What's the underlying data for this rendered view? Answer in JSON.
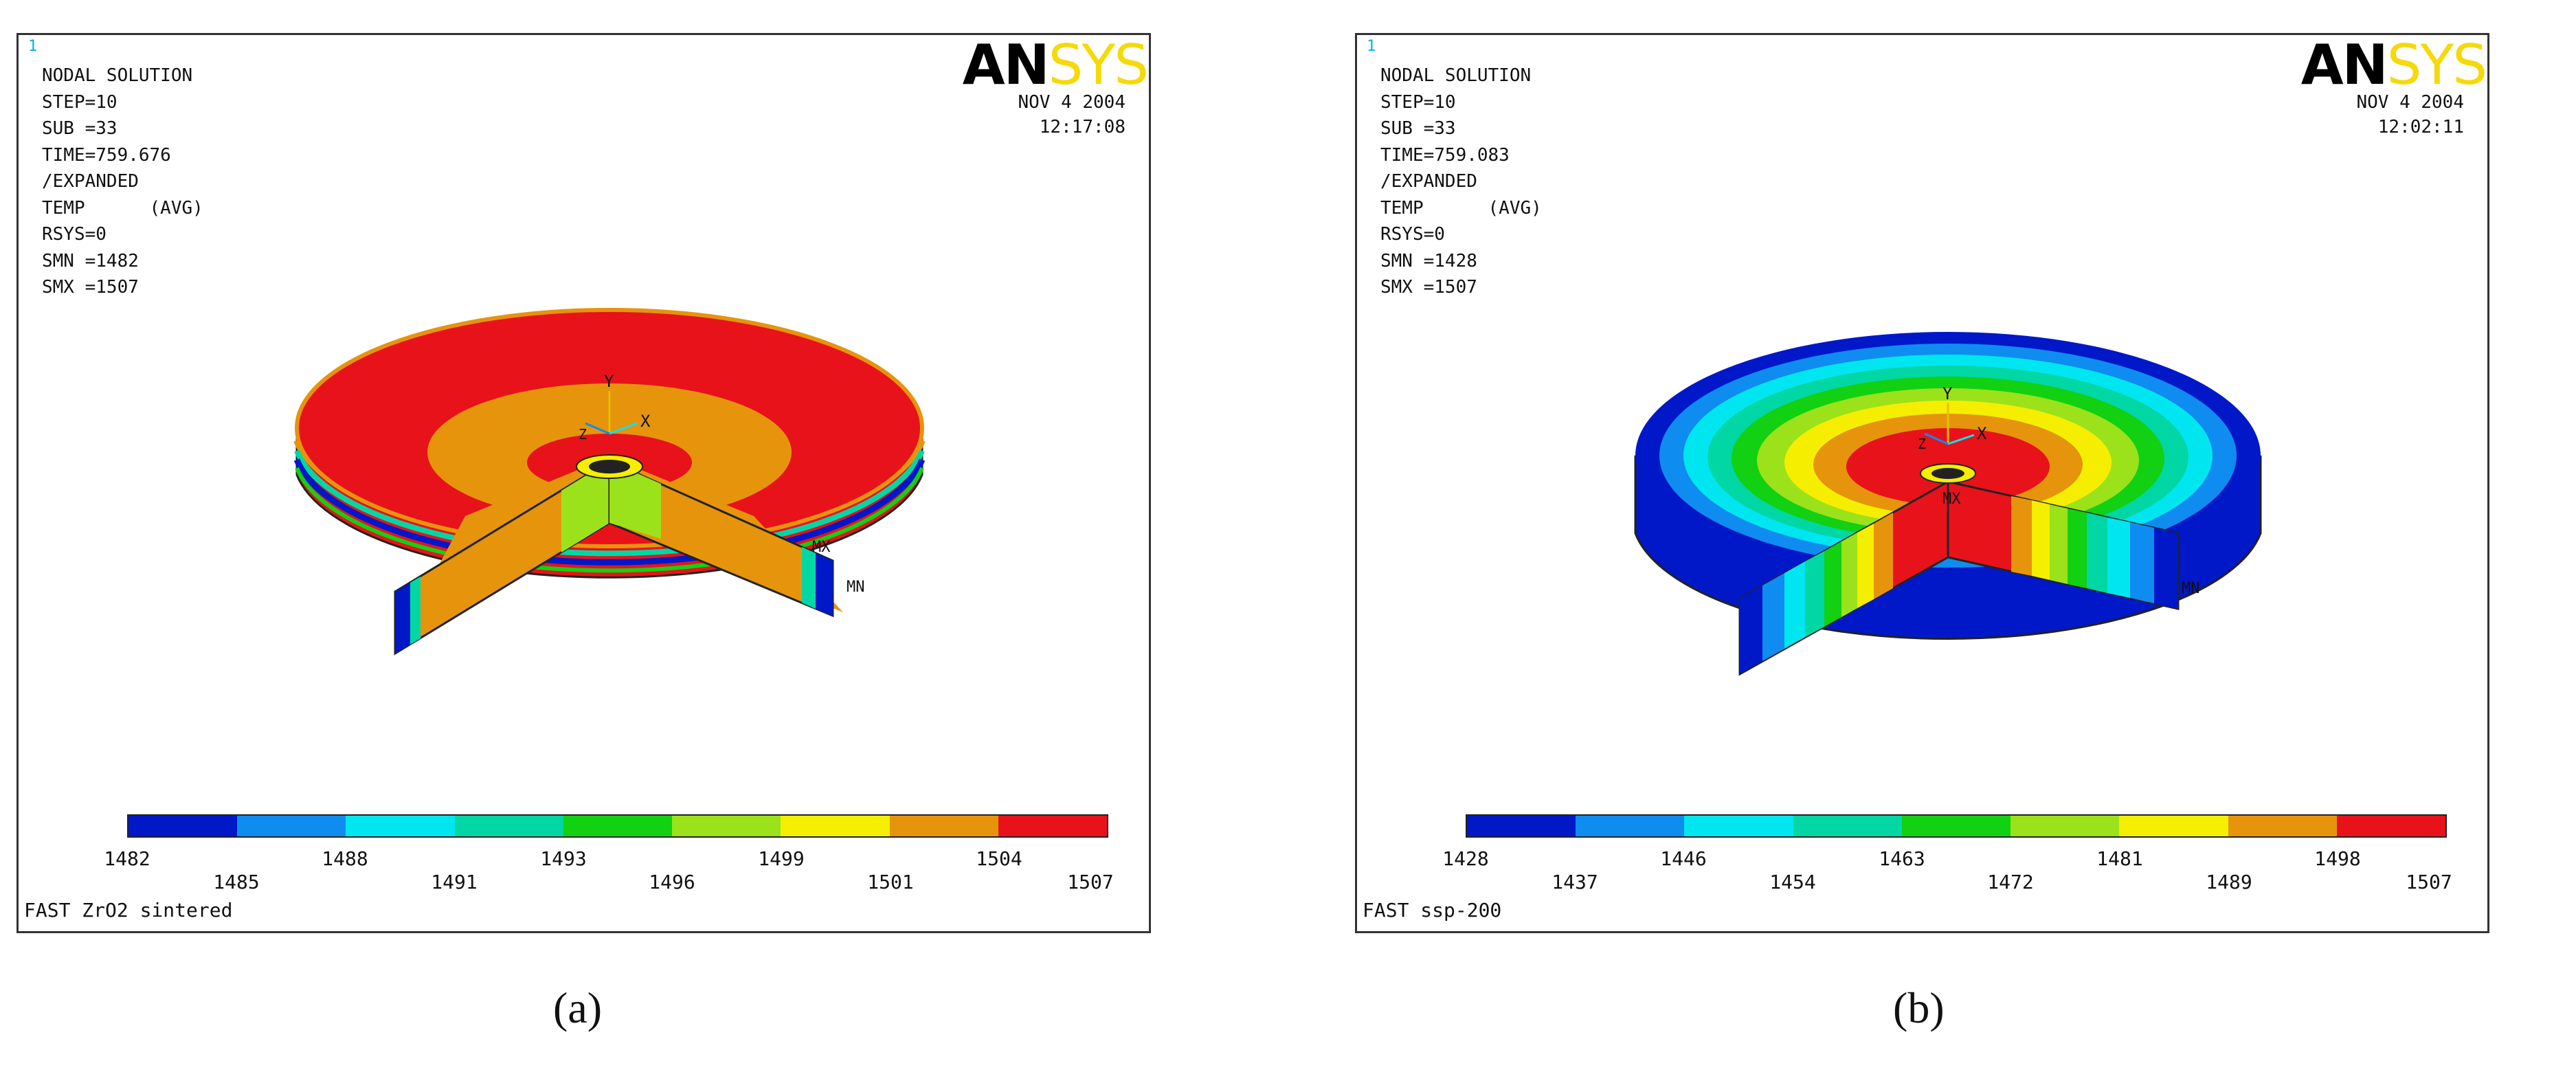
{
  "panels": [
    {
      "frame_number": "1",
      "header": [
        "NODAL SOLUTION",
        "STEP=10",
        "SUB =33",
        "TIME=759.676",
        "/EXPANDED",
        "TEMP      (AVG)",
        "RSYS=0",
        "SMN =1482",
        "SMX =1507"
      ],
      "logo": {
        "an": "AN",
        "sys": "SYS"
      },
      "date": "NOV  4 2004",
      "time": "12:17:08",
      "legend_colors": [
        "#0018c8",
        "#0f8cf0",
        "#00e6f0",
        "#00d7a5",
        "#12d012",
        "#9be21a",
        "#f5ee00",
        "#e6940c",
        "#e8121a"
      ],
      "ticks_upper": [
        "1482",
        "1488",
        "1493",
        "1499",
        "1504"
      ],
      "ticks_lower": [
        "1485",
        "1491",
        "1496",
        "1501",
        "1507"
      ],
      "title": "FAST ZrO2 sintered",
      "axis_labels": {
        "y": "Y",
        "x": "X",
        "z": "Z"
      },
      "mark_mx": "MX",
      "mark_mn": "MN",
      "caption": "(a)"
    },
    {
      "frame_number": "1",
      "header": [
        "NODAL SOLUTION",
        "STEP=10",
        "SUB =33",
        "TIME=759.083",
        "/EXPANDED",
        "TEMP      (AVG)",
        "RSYS=0",
        "SMN =1428",
        "SMX =1507"
      ],
      "logo": {
        "an": "AN",
        "sys": "SYS"
      },
      "date": "NOV  4 2004",
      "time": "12:02:11",
      "legend_colors": [
        "#0018c8",
        "#0f8cf0",
        "#00e6f0",
        "#00d7a5",
        "#12d012",
        "#9be21a",
        "#f5ee00",
        "#e6940c",
        "#e8121a"
      ],
      "ticks_upper": [
        "1428",
        "1446",
        "1463",
        "1481",
        "1498"
      ],
      "ticks_lower": [
        "1437",
        "1454",
        "1472",
        "1489",
        "1507"
      ],
      "title": "FAST ssp-200",
      "axis_labels": {
        "y": "Y",
        "x": "X",
        "z": "Z"
      },
      "mark_mx": "MX",
      "mark_mn": "MN",
      "caption": "(b)"
    }
  ]
}
